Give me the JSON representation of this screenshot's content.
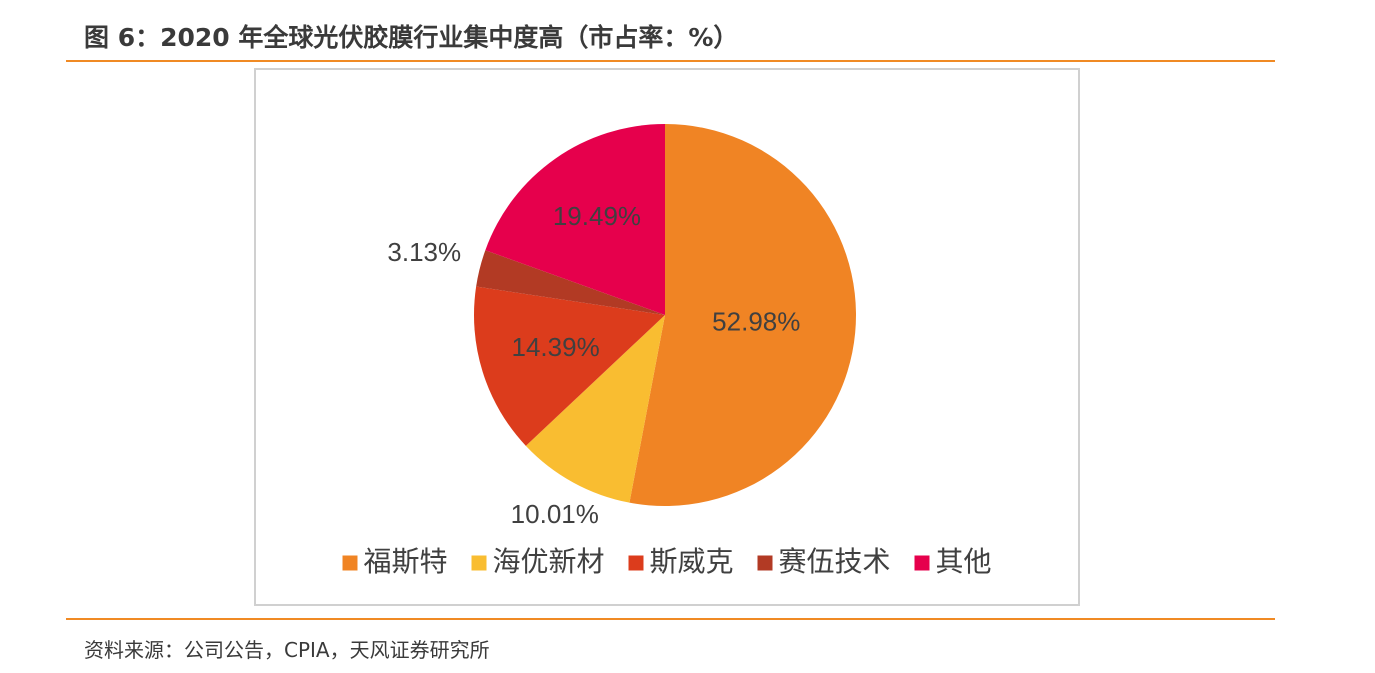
{
  "figure_title": "图 6：2020 年全球光伏胶膜行业集中度高（市占率：%）",
  "source_note": "资料来源：公司公告，CPIA，天风证券研究所",
  "chart_data": {
    "type": "pie",
    "categories": [
      "福斯特",
      "海优新材",
      "斯威克",
      "赛伍技术",
      "其他"
    ],
    "values": [
      52.98,
      10.01,
      14.39,
      3.13,
      19.49
    ],
    "data_labels": [
      "52.98%",
      "10.01%",
      "14.39%",
      "3.13%",
      "19.49%"
    ],
    "colors": [
      "#f08424",
      "#f9bd31",
      "#dc3c1c",
      "#b23a24",
      "#e6004c"
    ],
    "title": "",
    "legend_position": "bottom",
    "start_angle_deg": 0,
    "direction": "clockwise"
  }
}
